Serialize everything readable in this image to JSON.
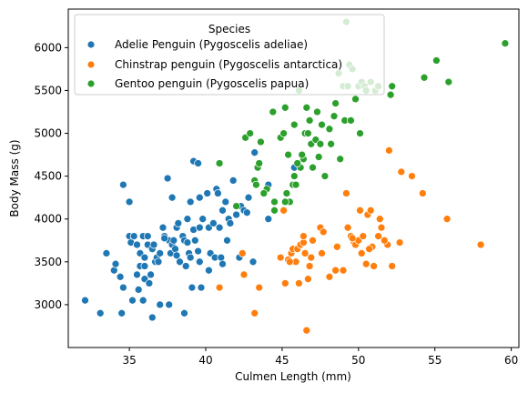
{
  "chart_data": {
    "type": "scatter",
    "title": "",
    "xlabel": "Culmen Length (mm)",
    "ylabel": "Body Mass (g)",
    "xlim": [
      31,
      60.5
    ],
    "ylim": [
      2500,
      6450
    ],
    "xticks": [
      35,
      40,
      45,
      50,
      55,
      60
    ],
    "yticks": [
      3000,
      3500,
      4000,
      4500,
      5000,
      5500,
      6000
    ],
    "grid": false,
    "legend": {
      "title": "Species",
      "placement": "top-left",
      "entries": [
        {
          "label": "Adelie Penguin (Pygoscelis adeliae)",
          "color": "#1f77b4"
        },
        {
          "label": "Chinstrap penguin (Pygoscelis antarctica)",
          "color": "#ff7f0e"
        },
        {
          "label": "Gentoo penguin (Pygoscelis papua)",
          "color": "#2ca02c"
        }
      ]
    },
    "series": [
      {
        "name": "Adelie Penguin (Pygoscelis adeliae)",
        "color": "#1f77b4",
        "points": [
          [
            32.1,
            3050
          ],
          [
            33.1,
            2900
          ],
          [
            33.5,
            3600
          ],
          [
            34.0,
            3400
          ],
          [
            34.1,
            3475
          ],
          [
            34.4,
            3325
          ],
          [
            34.5,
            2900
          ],
          [
            34.6,
            4400
          ],
          [
            34.6,
            3200
          ],
          [
            35.0,
            4200
          ],
          [
            35.0,
            3800
          ],
          [
            35.1,
            3725
          ],
          [
            35.2,
            3050
          ],
          [
            35.3,
            3800
          ],
          [
            35.5,
            3700
          ],
          [
            35.5,
            3350
          ],
          [
            35.6,
            3175
          ],
          [
            35.7,
            3450
          ],
          [
            35.7,
            3600
          ],
          [
            35.9,
            3800
          ],
          [
            35.9,
            3050
          ],
          [
            36.0,
            3300
          ],
          [
            36.0,
            3450
          ],
          [
            36.0,
            3550
          ],
          [
            36.2,
            3800
          ],
          [
            36.2,
            3700
          ],
          [
            36.3,
            3250
          ],
          [
            36.4,
            3350
          ],
          [
            36.5,
            3650
          ],
          [
            36.5,
            2850
          ],
          [
            36.6,
            3700
          ],
          [
            36.7,
            3500
          ],
          [
            36.8,
            3550
          ],
          [
            36.9,
            3500
          ],
          [
            37.0,
            3000
          ],
          [
            37.0,
            3600
          ],
          [
            37.2,
            3900
          ],
          [
            37.3,
            3800
          ],
          [
            37.5,
            4475
          ],
          [
            37.6,
            3750
          ],
          [
            37.6,
            3000
          ],
          [
            37.7,
            3600
          ],
          [
            37.8,
            3700
          ],
          [
            37.8,
            4250
          ],
          [
            37.9,
            3750
          ],
          [
            38.0,
            3650
          ],
          [
            38.1,
            3575
          ],
          [
            38.1,
            3900
          ],
          [
            38.2,
            3950
          ],
          [
            38.3,
            3500
          ],
          [
            38.5,
            3800
          ],
          [
            38.6,
            3750
          ],
          [
            38.6,
            2900
          ],
          [
            38.7,
            3450
          ],
          [
            38.8,
            3725
          ],
          [
            38.8,
            4000
          ],
          [
            38.9,
            3600
          ],
          [
            39.0,
            4200
          ],
          [
            39.0,
            3550
          ],
          [
            39.1,
            3200
          ],
          [
            39.2,
            3875
          ],
          [
            39.2,
            4675
          ],
          [
            39.3,
            3750
          ],
          [
            39.5,
            4650
          ],
          [
            39.5,
            3625
          ],
          [
            39.6,
            4250
          ],
          [
            39.6,
            3500
          ],
          [
            39.7,
            3200
          ],
          [
            39.8,
            4000
          ],
          [
            40.1,
            4300
          ],
          [
            40.2,
            3900
          ],
          [
            40.3,
            3600
          ],
          [
            40.5,
            3950
          ],
          [
            40.6,
            3550
          ],
          [
            40.7,
            4350
          ],
          [
            40.8,
            4300
          ],
          [
            40.9,
            3900
          ],
          [
            41.0,
            3550
          ],
          [
            41.1,
            4100
          ],
          [
            41.1,
            3475
          ],
          [
            41.3,
            4200
          ],
          [
            41.4,
            3750
          ],
          [
            41.5,
            4000
          ],
          [
            41.6,
            3950
          ],
          [
            41.8,
            4450
          ],
          [
            42.0,
            4050
          ],
          [
            42.2,
            3550
          ],
          [
            42.3,
            4150
          ],
          [
            42.5,
            4100
          ],
          [
            42.7,
            4075
          ],
          [
            42.8,
            4250
          ],
          [
            43.1,
            3500
          ],
          [
            43.2,
            4775
          ],
          [
            44.1,
            4000
          ],
          [
            45.8,
            4600
          ],
          [
            44.1,
            4400
          ],
          [
            40.9,
            3200
          ],
          [
            37.3,
            3775
          ],
          [
            39.6,
            3900
          ],
          [
            40.2,
            3400
          ]
        ]
      },
      {
        "name": "Chinstrap penguin (Pygoscelis antarctica)",
        "color": "#ff7f0e",
        "points": [
          [
            40.9,
            3200
          ],
          [
            42.4,
            3600
          ],
          [
            42.5,
            3350
          ],
          [
            43.2,
            2900
          ],
          [
            43.5,
            3200
          ],
          [
            45.2,
            3250
          ],
          [
            45.4,
            3525
          ],
          [
            45.6,
            3600
          ],
          [
            45.7,
            3650
          ],
          [
            45.9,
            3500
          ],
          [
            46.0,
            3650
          ],
          [
            46.1,
            3250
          ],
          [
            46.2,
            3700
          ],
          [
            46.4,
            3725
          ],
          [
            46.5,
            3600
          ],
          [
            46.6,
            2700
          ],
          [
            46.7,
            3300
          ],
          [
            46.8,
            3450
          ],
          [
            46.9,
            3550
          ],
          [
            47.0,
            3750
          ],
          [
            47.5,
            3900
          ],
          [
            47.6,
            3600
          ],
          [
            48.1,
            3325
          ],
          [
            48.5,
            3400
          ],
          [
            49.0,
            3400
          ],
          [
            49.2,
            4300
          ],
          [
            49.3,
            3900
          ],
          [
            49.5,
            3800
          ],
          [
            49.7,
            3725
          ],
          [
            49.8,
            3700
          ],
          [
            50.0,
            3750
          ],
          [
            50.1,
            4100
          ],
          [
            50.2,
            3600
          ],
          [
            50.3,
            3800
          ],
          [
            50.5,
            3475
          ],
          [
            50.6,
            4050
          ],
          [
            50.8,
            4100
          ],
          [
            50.9,
            3675
          ],
          [
            51.0,
            3450
          ],
          [
            51.3,
            3800
          ],
          [
            51.4,
            4000
          ],
          [
            51.5,
            3900
          ],
          [
            51.9,
            3700
          ],
          [
            52.0,
            4800
          ],
          [
            52.2,
            3450
          ],
          [
            52.7,
            3725
          ],
          [
            52.8,
            4550
          ],
          [
            53.5,
            4500
          ],
          [
            54.2,
            4300
          ],
          [
            55.8,
            4000
          ],
          [
            58.0,
            3700
          ],
          [
            45.5,
            3500
          ],
          [
            47.7,
            3850
          ],
          [
            48.6,
            3675
          ],
          [
            49.6,
            3775
          ],
          [
            50.7,
            3650
          ],
          [
            45.1,
            4100
          ],
          [
            44.9,
            3550
          ],
          [
            46.4,
            3800
          ],
          [
            51.7,
            3750
          ]
        ]
      },
      {
        "name": "Gentoo penguin (Pygoscelis papua)",
        "color": "#2ca02c",
        "points": [
          [
            40.9,
            4650
          ],
          [
            42.0,
            4150
          ],
          [
            42.6,
            4950
          ],
          [
            42.9,
            5000
          ],
          [
            43.2,
            4450
          ],
          [
            43.3,
            4400
          ],
          [
            43.4,
            4600
          ],
          [
            43.5,
            4650
          ],
          [
            43.6,
            4900
          ],
          [
            44.0,
            4350
          ],
          [
            44.4,
            5250
          ],
          [
            44.5,
            4100
          ],
          [
            44.9,
            4950
          ],
          [
            45.1,
            5000
          ],
          [
            45.2,
            5300
          ],
          [
            45.3,
            4300
          ],
          [
            45.4,
            4750
          ],
          [
            45.5,
            4200
          ],
          [
            45.7,
            4400
          ],
          [
            45.8,
            5100
          ],
          [
            46.1,
            5500
          ],
          [
            46.2,
            4600
          ],
          [
            46.4,
            4700
          ],
          [
            46.5,
            5000
          ],
          [
            46.6,
            5300
          ],
          [
            46.8,
            5150
          ],
          [
            46.9,
            4875
          ],
          [
            47.2,
            4925
          ],
          [
            47.3,
            5250
          ],
          [
            47.5,
            4875
          ],
          [
            47.6,
            5100
          ],
          [
            47.8,
            4500
          ],
          [
            48.1,
            5050
          ],
          [
            48.2,
            4875
          ],
          [
            48.4,
            5200
          ],
          [
            48.5,
            5350
          ],
          [
            48.7,
            5700
          ],
          [
            49.0,
            5550
          ],
          [
            49.1,
            5150
          ],
          [
            49.2,
            6300
          ],
          [
            49.3,
            5550
          ],
          [
            49.4,
            5800
          ],
          [
            49.5,
            5150
          ],
          [
            49.6,
            5750
          ],
          [
            49.8,
            5400
          ],
          [
            50.0,
            5550
          ],
          [
            50.1,
            5000
          ],
          [
            50.2,
            5600
          ],
          [
            50.4,
            5550
          ],
          [
            50.5,
            5500
          ],
          [
            50.8,
            5600
          ],
          [
            51.1,
            5500
          ],
          [
            51.3,
            5550
          ],
          [
            52.1,
            5450
          ],
          [
            52.2,
            5550
          ],
          [
            54.3,
            5650
          ],
          [
            55.1,
            5850
          ],
          [
            55.9,
            5600
          ],
          [
            59.6,
            6050
          ],
          [
            45.2,
            4200
          ],
          [
            44.5,
            4200
          ],
          [
            45.8,
            4500
          ],
          [
            46.3,
            4750
          ],
          [
            47.0,
            4600
          ],
          [
            48.8,
            4700
          ],
          [
            46.0,
            4650
          ],
          [
            43.8,
            4300
          ],
          [
            45.9,
            4400
          ],
          [
            47.4,
            4725
          ],
          [
            46.7,
            5000
          ]
        ]
      }
    ]
  }
}
